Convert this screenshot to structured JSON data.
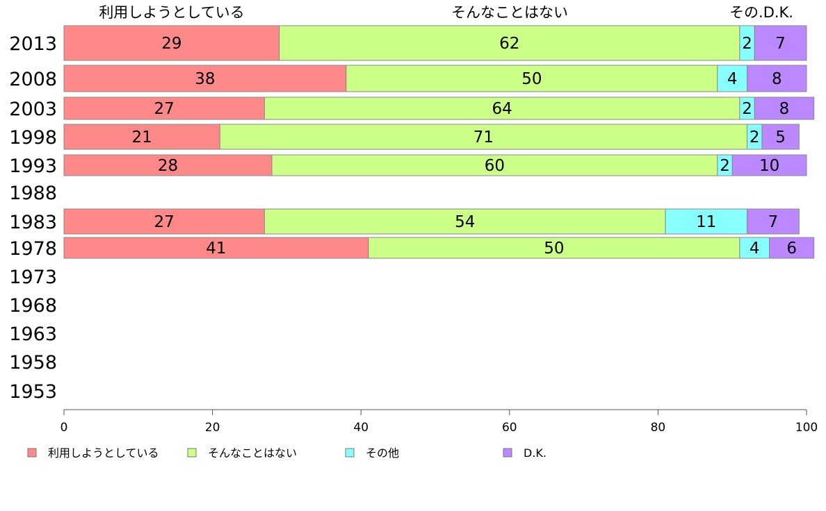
{
  "chart_data": {
    "type": "bar",
    "orientation": "horizontal",
    "stacked": true,
    "header_labels": [
      "利用しようとしている",
      "そんなことはない",
      "その.D.K."
    ],
    "categories": [
      "2013",
      "2008",
      "2003",
      "1998",
      "1993",
      "1988",
      "1983",
      "1978",
      "1973",
      "1968",
      "1963",
      "1958",
      "1953"
    ],
    "series": [
      {
        "name": "利用しようとしている",
        "color": "#ff8888",
        "values": [
          29,
          38,
          27,
          21,
          28,
          null,
          27,
          41,
          null,
          null,
          null,
          null,
          null
        ]
      },
      {
        "name": "そんなことはない",
        "color": "#ccff88",
        "values": [
          62,
          50,
          64,
          71,
          60,
          null,
          54,
          50,
          null,
          null,
          null,
          null,
          null
        ]
      },
      {
        "name": "その他",
        "color": "#88ffff",
        "values": [
          2,
          4,
          2,
          2,
          2,
          null,
          11,
          4,
          null,
          null,
          null,
          null,
          null
        ]
      },
      {
        "name": "D.K.",
        "color": "#bb88ff",
        "values": [
          7,
          8,
          8,
          5,
          10,
          null,
          7,
          6,
          null,
          null,
          null,
          null,
          null
        ]
      }
    ],
    "xlim": [
      0,
      100
    ],
    "xticks": [
      0,
      20,
      40,
      60,
      80,
      100
    ],
    "grid": false,
    "legend_position": "bottom"
  }
}
